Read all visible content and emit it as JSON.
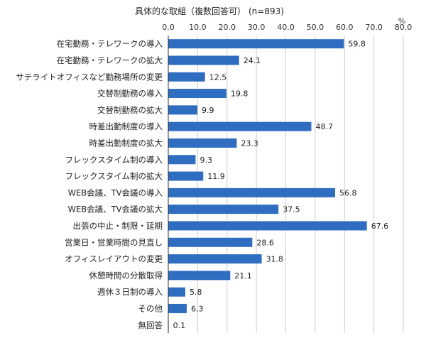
{
  "chart_data": {
    "type": "bar",
    "orientation": "horizontal",
    "title": "具体的な取組（複数回答可）",
    "subtitle": "(n=893)",
    "unit": "%",
    "xlim": [
      0,
      80
    ],
    "xticks": [
      "0.0",
      "10.0",
      "20.0",
      "30.0",
      "40.0",
      "50.0",
      "60.0",
      "70.0",
      "80.0"
    ],
    "grid": true,
    "categories": [
      "在宅勤務・テレワークの導入",
      "在宅勤務・テレワークの拡大",
      "サテライトオフィスなど勤務場所の変更",
      "交替制勤務の導入",
      "交替制勤務の拡大",
      "時差出勤制度の導入",
      "時差出勤制度の拡大",
      "フレックスタイム制の導入",
      "フレックスタイム制の拡大",
      "WEB会議、TV会議の導入",
      "WEB会議、TV会議の拡大",
      "出張の中止・制限・延期",
      "営業日・営業時間の見直し",
      "オフィスレイアウトの変更",
      "休憩時間の分散取得",
      "週休３日制の導入",
      "その他",
      "無回答"
    ],
    "values": [
      59.8,
      24.1,
      12.5,
      19.8,
      9.9,
      48.7,
      23.3,
      9.3,
      11.9,
      56.8,
      37.5,
      67.6,
      28.6,
      31.8,
      21.1,
      5.8,
      6.3,
      0.1
    ],
    "value_labels": [
      "59.8",
      "24.1",
      "12.5",
      "19.8",
      "9.9",
      "48.7",
      "23.3",
      "9.3",
      "11.9",
      "56.8",
      "37.5",
      "67.6",
      "28.6",
      "31.8",
      "21.1",
      "5.8",
      "6.3",
      "0.1"
    ],
    "color": "#2f6dc1"
  }
}
